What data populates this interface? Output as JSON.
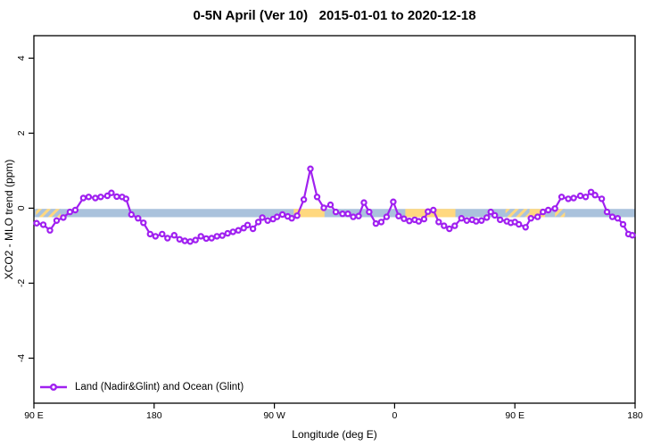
{
  "title": "0-5N April (Ver 10)   2015-01-01 to 2020-12-18",
  "chart_data": {
    "type": "line",
    "title": "0-5N April (Ver 10)   2015-01-01 to 2020-12-18",
    "xlabel": "Longitude (deg E)",
    "ylabel": "XCO2 - MLO trend (ppm)",
    "xlim": [
      90,
      540
    ],
    "ylim": [
      -5.2,
      4.6
    ],
    "grid": false,
    "legend_position": "bottom-left",
    "x_ticks": [
      {
        "lon": 90,
        "label": "90 E"
      },
      {
        "lon": 180,
        "label": "180"
      },
      {
        "lon": 270,
        "label": "90 W"
      },
      {
        "lon": 360,
        "label": "0"
      },
      {
        "lon": 450,
        "label": "90 E"
      },
      {
        "lon": 540,
        "label": "180"
      }
    ],
    "y_ticks": [
      {
        "value": 4,
        "label": "4"
      },
      {
        "value": 2,
        "label": "2"
      },
      {
        "value": 0,
        "label": "0"
      },
      {
        "value": -2,
        "label": "-2"
      },
      {
        "value": -4,
        "label": "-4"
      }
    ],
    "bands": {
      "reference_band": {
        "value_from": -0.02,
        "value_to": -0.24,
        "color": "#aac2dc"
      },
      "highlight_color": "#ffd87f",
      "highlight_segments": [
        {
          "lon1": 91.5,
          "lon2": 110,
          "hatch": true
        },
        {
          "lon1": 284.5,
          "lon2": 307.5,
          "hatch": false
        },
        {
          "lon1": 368,
          "lon2": 405.5,
          "hatch": false
        },
        {
          "lon1": 443,
          "lon2": 461,
          "hatch": true
        },
        {
          "lon1": 461,
          "lon2": 472.5,
          "hatch": false
        },
        {
          "lon1": 480,
          "lon2": 487.5,
          "hatch": true
        }
      ]
    },
    "legend": {
      "label": "Land (Nadir&Glint) and Ocean (Glint)"
    },
    "series": [
      {
        "name": "Land (Nadir&Glint) and Ocean (Glint)",
        "color": "#A020F0",
        "marker": "open-circle",
        "points": [
          [
            92,
            -0.4
          ],
          [
            97,
            -0.44
          ],
          [
            102,
            -0.59
          ],
          [
            107,
            -0.33
          ],
          [
            112,
            -0.25
          ],
          [
            117,
            -0.1
          ],
          [
            121,
            -0.05
          ],
          [
            127,
            0.27
          ],
          [
            131,
            0.3
          ],
          [
            136,
            0.27
          ],
          [
            140,
            0.3
          ],
          [
            145,
            0.33
          ],
          [
            148,
            0.41
          ],
          [
            152,
            0.31
          ],
          [
            156,
            0.3
          ],
          [
            159,
            0.25
          ],
          [
            163,
            -0.17
          ],
          [
            168,
            -0.27
          ],
          [
            172,
            -0.39
          ],
          [
            177,
            -0.69
          ],
          [
            181,
            -0.75
          ],
          [
            186,
            -0.69
          ],
          [
            190,
            -0.8
          ],
          [
            195,
            -0.72
          ],
          [
            199,
            -0.83
          ],
          [
            203,
            -0.87
          ],
          [
            207,
            -0.89
          ],
          [
            211,
            -0.85
          ],
          [
            215,
            -0.75
          ],
          [
            219,
            -0.81
          ],
          [
            223,
            -0.8
          ],
          [
            227,
            -0.75
          ],
          [
            231,
            -0.73
          ],
          [
            235,
            -0.67
          ],
          [
            239,
            -0.63
          ],
          [
            243,
            -0.59
          ],
          [
            247,
            -0.53
          ],
          [
            250,
            -0.45
          ],
          [
            254,
            -0.55
          ],
          [
            258,
            -0.37
          ],
          [
            261,
            -0.25
          ],
          [
            265,
            -0.33
          ],
          [
            269,
            -0.29
          ],
          [
            272,
            -0.23
          ],
          [
            276,
            -0.17
          ],
          [
            280,
            -0.22
          ],
          [
            283,
            -0.27
          ],
          [
            287,
            -0.2
          ],
          [
            292,
            0.23
          ],
          [
            297,
            1.05
          ],
          [
            302,
            0.3
          ],
          [
            307,
            0.01
          ],
          [
            312,
            0.09
          ],
          [
            316,
            -0.1
          ],
          [
            321,
            -0.15
          ],
          [
            325,
            -0.15
          ],
          [
            329,
            -0.23
          ],
          [
            333,
            -0.21
          ],
          [
            337,
            0.15
          ],
          [
            341,
            -0.1
          ],
          [
            346,
            -0.41
          ],
          [
            350,
            -0.37
          ],
          [
            354,
            -0.23
          ],
          [
            359,
            0.17
          ],
          [
            363,
            -0.21
          ],
          [
            367,
            -0.28
          ],
          [
            371,
            -0.34
          ],
          [
            375,
            -0.31
          ],
          [
            378,
            -0.35
          ],
          [
            382,
            -0.29
          ],
          [
            385,
            -0.09
          ],
          [
            389,
            -0.05
          ],
          [
            393,
            -0.37
          ],
          [
            397,
            -0.47
          ],
          [
            401,
            -0.55
          ],
          [
            405,
            -0.47
          ],
          [
            410,
            -0.27
          ],
          [
            414,
            -0.33
          ],
          [
            418,
            -0.31
          ],
          [
            421,
            -0.35
          ],
          [
            425,
            -0.33
          ],
          [
            429,
            -0.25
          ],
          [
            432,
            -0.1
          ],
          [
            435,
            -0.19
          ],
          [
            439,
            -0.31
          ],
          [
            444,
            -0.35
          ],
          [
            447,
            -0.39
          ],
          [
            450,
            -0.37
          ],
          [
            453,
            -0.43
          ],
          [
            458,
            -0.51
          ],
          [
            462,
            -0.27
          ],
          [
            467,
            -0.23
          ],
          [
            471,
            -0.1
          ],
          [
            475,
            -0.05
          ],
          [
            480,
            -0.01
          ],
          [
            485,
            0.3
          ],
          [
            490,
            0.25
          ],
          [
            494,
            0.27
          ],
          [
            499,
            0.33
          ],
          [
            503,
            0.3
          ],
          [
            507,
            0.43
          ],
          [
            510,
            0.35
          ],
          [
            515,
            0.25
          ],
          [
            519,
            -0.1
          ],
          [
            523,
            -0.23
          ],
          [
            527,
            -0.27
          ],
          [
            531,
            -0.43
          ],
          [
            535,
            -0.69
          ],
          [
            538,
            -0.72
          ]
        ]
      }
    ]
  }
}
